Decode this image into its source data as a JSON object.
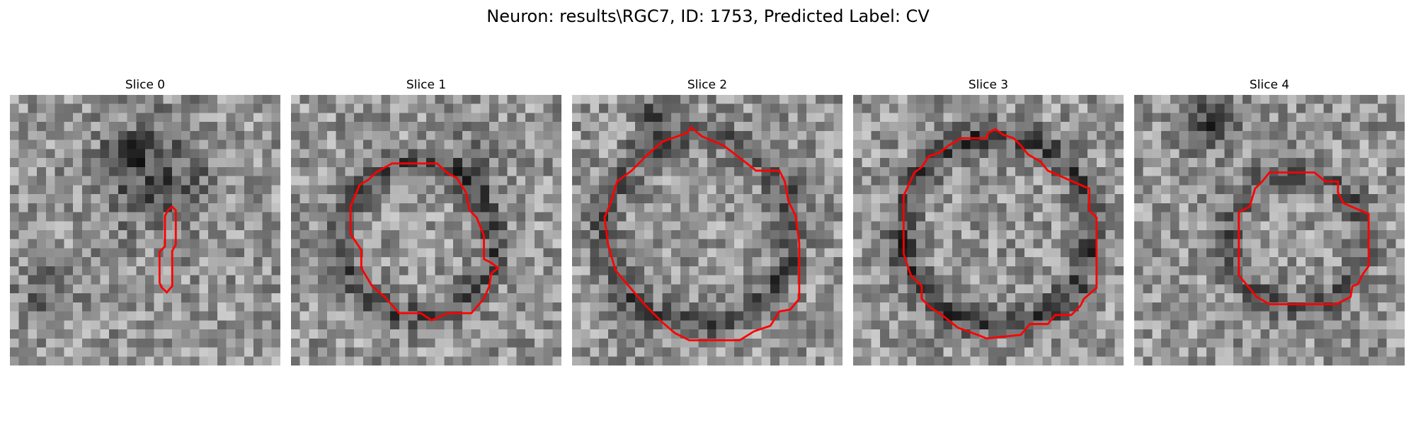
{
  "figure": {
    "title": "Neuron: results\\RGC7, ID: 1753, Predicted Label: CV",
    "contour_color": "#ff0000",
    "colormap": "gray"
  },
  "slices": [
    {
      "title": "Slice 0"
    },
    {
      "title": "Slice 1"
    },
    {
      "title": "Slice 2"
    },
    {
      "title": "Slice 3"
    },
    {
      "title": "Slice 4"
    }
  ]
}
